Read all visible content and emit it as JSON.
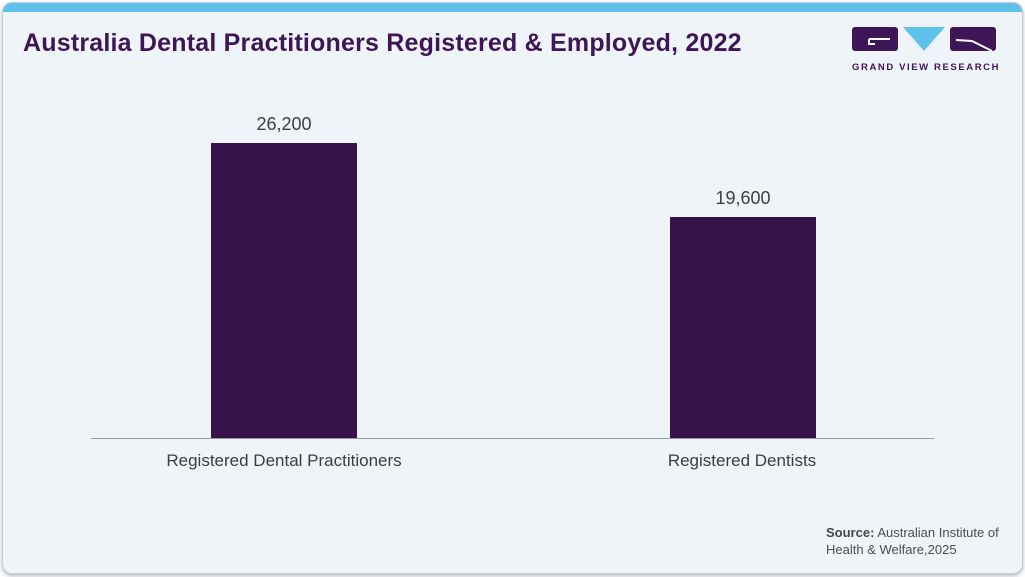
{
  "header": {
    "title": "Australia Dental Practitioners Registered & Employed, 2022",
    "logo_text": "GRAND VIEW RESEARCH"
  },
  "chart_data": {
    "type": "bar",
    "title": "Australia Dental Practitioners Registered & Employed, 2022",
    "categories": [
      "Registered Dental Practitioners",
      "Registered Dentists"
    ],
    "values": [
      26200,
      19600
    ],
    "value_labels": [
      "26,200",
      "19,600"
    ],
    "xlabel": "",
    "ylabel": "",
    "ylim": [
      0,
      30000
    ],
    "grid": false,
    "legend": false,
    "bar_color": "#38124b"
  },
  "footer": {
    "source_label": "Source:",
    "source_text": "Australian Institute of Health & Welfare,2025"
  },
  "colors": {
    "brand_purple": "#3e1556",
    "bar_purple": "#38124b",
    "accent_blue": "#5fc2ea",
    "card_background": "#eff4f9",
    "axis_line": "#94999e"
  }
}
